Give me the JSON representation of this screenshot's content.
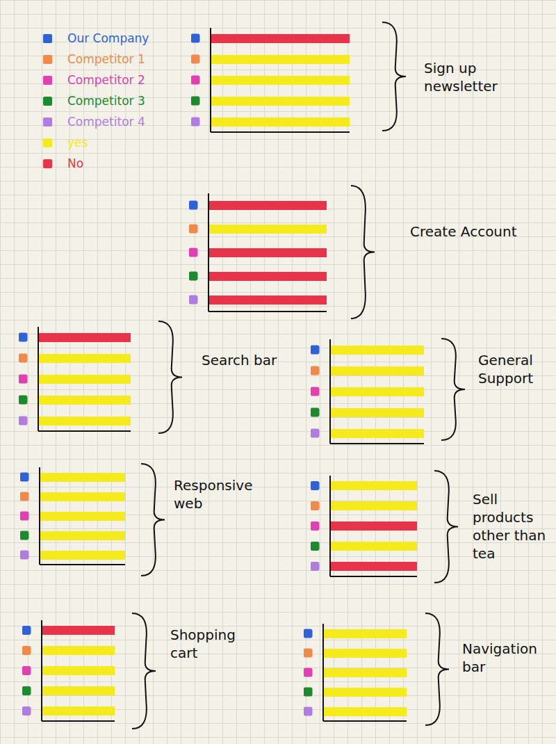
{
  "legend": {
    "entries": [
      {
        "name": "Our Company",
        "color": "#2f62d6"
      },
      {
        "name": "Competitor 1",
        "color": "#f08a4b"
      },
      {
        "name": "Competitor 2",
        "color": "#e040b0"
      },
      {
        "name": "Competitor 3",
        "color": "#1e8a2e"
      },
      {
        "name": "Competitor 4",
        "color": "#b07ce0"
      },
      {
        "name": "yes",
        "color": "#f5ea1c"
      },
      {
        "name": "No",
        "color": "#e8344a"
      }
    ]
  },
  "chart_data": [
    {
      "type": "bar",
      "title": "Sign up newsletter",
      "orientation": "horizontal",
      "tick_labels": false,
      "categories": [
        "Our Company",
        "Competitor 1",
        "Competitor 2",
        "Competitor 3",
        "Competitor 4"
      ],
      "values": [
        1,
        1,
        1,
        1,
        1
      ],
      "colors": [
        "#e8344a",
        "#f5ea1c",
        "#f5ea1c",
        "#f5ea1c",
        "#f5ea1c"
      ],
      "xlim": [
        0,
        1
      ]
    },
    {
      "type": "bar",
      "title": "Create Account",
      "orientation": "horizontal",
      "tick_labels": false,
      "categories": [
        "Our Company",
        "Competitor 1",
        "Competitor 2",
        "Competitor 3",
        "Competitor 4"
      ],
      "values": [
        1,
        1,
        1,
        1,
        1
      ],
      "colors": [
        "#e8344a",
        "#f5ea1c",
        "#e8344a",
        "#e8344a",
        "#e8344a"
      ],
      "xlim": [
        0,
        1
      ]
    },
    {
      "type": "bar",
      "title": "Search bar",
      "orientation": "horizontal",
      "tick_labels": false,
      "categories": [
        "Our Company",
        "Competitor 1",
        "Competitor 2",
        "Competitor 3",
        "Competitor 4"
      ],
      "values": [
        1,
        1,
        1,
        1,
        1
      ],
      "colors": [
        "#e8344a",
        "#f5ea1c",
        "#f5ea1c",
        "#f5ea1c",
        "#f5ea1c"
      ],
      "xlim": [
        0,
        1
      ]
    },
    {
      "type": "bar",
      "title": "General Support",
      "orientation": "horizontal",
      "tick_labels": false,
      "categories": [
        "Our Company",
        "Competitor 1",
        "Competitor 2",
        "Competitor 3",
        "Competitor 4"
      ],
      "values": [
        1,
        1,
        1,
        1,
        1
      ],
      "colors": [
        "#f5ea1c",
        "#f5ea1c",
        "#f5ea1c",
        "#f5ea1c",
        "#f5ea1c"
      ],
      "xlim": [
        0,
        1
      ]
    },
    {
      "type": "bar",
      "title": "Responsive web",
      "orientation": "horizontal",
      "tick_labels": false,
      "categories": [
        "Our Company",
        "Competitor 1",
        "Competitor 2",
        "Competitor 3",
        "Competitor 4"
      ],
      "values": [
        1,
        1,
        1,
        1,
        1
      ],
      "colors": [
        "#f5ea1c",
        "#f5ea1c",
        "#f5ea1c",
        "#f5ea1c",
        "#f5ea1c"
      ],
      "xlim": [
        0,
        1
      ]
    },
    {
      "type": "bar",
      "title": "Sell products other than tea",
      "orientation": "horizontal",
      "tick_labels": false,
      "categories": [
        "Our Company",
        "Competitor 1",
        "Competitor 2",
        "Competitor 3",
        "Competitor 4"
      ],
      "values": [
        1,
        1,
        1,
        1,
        1
      ],
      "colors": [
        "#f5ea1c",
        "#f5ea1c",
        "#e8344a",
        "#f5ea1c",
        "#e8344a"
      ],
      "xlim": [
        0,
        1
      ]
    },
    {
      "type": "bar",
      "title": "Shopping cart",
      "orientation": "horizontal",
      "tick_labels": false,
      "categories": [
        "Our Company",
        "Competitor 1",
        "Competitor 2",
        "Competitor 3",
        "Competitor 4"
      ],
      "values": [
        1,
        1,
        1,
        1,
        1
      ],
      "colors": [
        "#e8344a",
        "#f5ea1c",
        "#f5ea1c",
        "#f5ea1c",
        "#f5ea1c"
      ],
      "xlim": [
        0,
        1
      ]
    },
    {
      "type": "bar",
      "title": "Navigation bar",
      "orientation": "horizontal",
      "tick_labels": false,
      "categories": [
        "Our Company",
        "Competitor 1",
        "Competitor 2",
        "Competitor 3",
        "Competitor 4"
      ],
      "values": [
        1,
        1,
        1,
        1,
        1
      ],
      "colors": [
        "#f5ea1c",
        "#f5ea1c",
        "#f5ea1c",
        "#f5ea1c",
        "#f5ea1c"
      ],
      "xlim": [
        0,
        1
      ]
    }
  ]
}
